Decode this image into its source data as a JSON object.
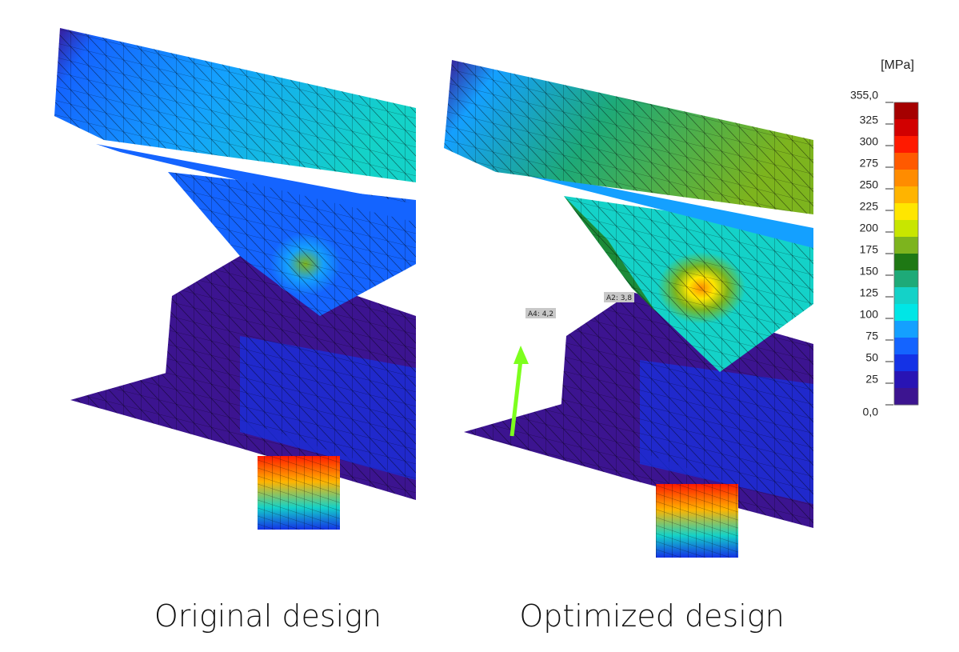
{
  "captions": {
    "left": "Original design",
    "right": "Optimized design"
  },
  "annotations": [
    {
      "label": "A4: 4,2"
    },
    {
      "label": "A2: 3,8"
    }
  ],
  "legend": {
    "unit": "[MPa]",
    "ticks": [
      "355,0",
      "325",
      "300",
      "275",
      "250",
      "225",
      "200",
      "175",
      "150",
      "125",
      "100",
      "75",
      "50",
      "25",
      "0,0"
    ],
    "colors": [
      "#a50000",
      "#d20000",
      "#ff1a00",
      "#ff5a00",
      "#ff8c00",
      "#ffb400",
      "#ffe600",
      "#c8e600",
      "#7db41e",
      "#1e7814",
      "#1eaa78",
      "#14d2c8",
      "#00e6e6",
      "#14a0ff",
      "#1464ff",
      "#1432e6",
      "#2814b4",
      "#3c1490"
    ]
  }
}
